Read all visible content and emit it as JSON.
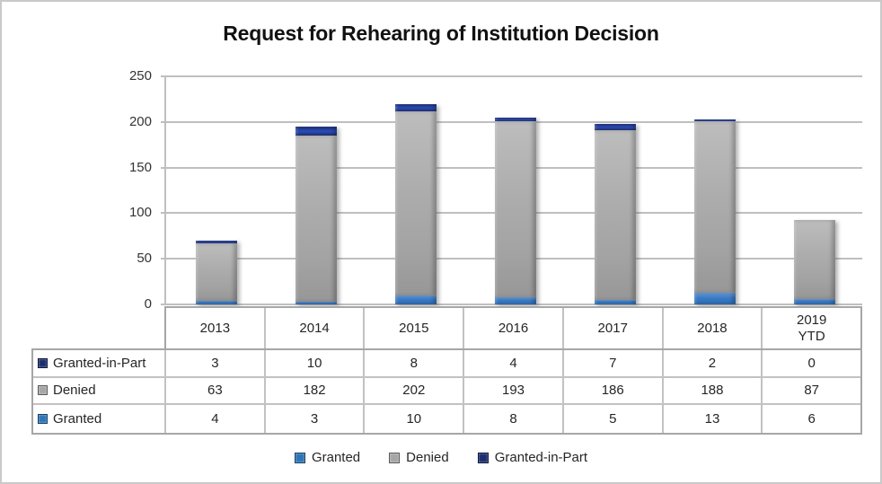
{
  "title": "Request for Rehearing of Institution Decision",
  "chart_data": {
    "type": "bar",
    "stacked": true,
    "title": "Request for Rehearing of Institution Decision",
    "categories": [
      "2013",
      "2014",
      "2015",
      "2016",
      "2017",
      "2018",
      "2019 YTD"
    ],
    "series": [
      {
        "name": "Granted",
        "color": "#2E75B6",
        "values": [
          4,
          3,
          10,
          8,
          5,
          13,
          6
        ]
      },
      {
        "name": "Denied",
        "color": "#A6A6A6",
        "values": [
          63,
          182,
          202,
          193,
          186,
          188,
          87
        ]
      },
      {
        "name": "Granted-in-Part",
        "color": "#1B2F6E",
        "values": [
          3,
          10,
          8,
          4,
          7,
          2,
          0
        ]
      }
    ],
    "xlabel": "",
    "ylabel": "",
    "ylim": [
      0,
      250
    ],
    "yticks": [
      0,
      50,
      100,
      150,
      200,
      250
    ],
    "grid": true,
    "legend_position": "bottom",
    "data_table_shown": true
  },
  "table": {
    "header_labels": [
      "2013",
      "2014",
      "2015",
      "2016",
      "2017",
      "2018",
      "2019\nYTD"
    ],
    "rows": [
      {
        "label": "Granted-in-Part",
        "color": "#1B2F6E",
        "values": [
          "3",
          "10",
          "8",
          "4",
          "7",
          "2",
          "0"
        ]
      },
      {
        "label": "Denied",
        "color": "#A6A6A6",
        "values": [
          "63",
          "182",
          "202",
          "193",
          "186",
          "188",
          "87"
        ]
      },
      {
        "label": "Granted",
        "color": "#2E75B6",
        "values": [
          "4",
          "3",
          "10",
          "8",
          "5",
          "13",
          "6"
        ]
      }
    ]
  },
  "legend": {
    "items": [
      {
        "label": "Granted",
        "color": "#2E75B6"
      },
      {
        "label": "Denied",
        "color": "#A6A6A6"
      },
      {
        "label": "Granted-in-Part",
        "color": "#1B2F6E"
      }
    ]
  }
}
